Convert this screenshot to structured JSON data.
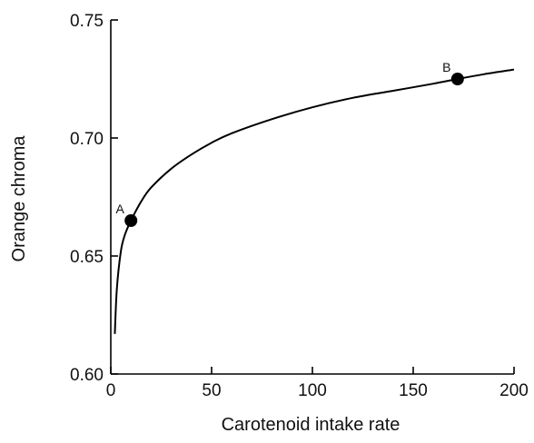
{
  "chart_data": {
    "type": "line",
    "title": "",
    "xlabel": "Carotenoid intake rate",
    "ylabel": "Orange chroma",
    "xlim": [
      0,
      200
    ],
    "ylim": [
      0.6,
      0.75
    ],
    "grid": false,
    "x_ticks": [
      "0",
      "50",
      "100",
      "150",
      "200"
    ],
    "y_ticks": [
      "0.60",
      "0.65",
      "0.70",
      "0.75"
    ],
    "series": [
      {
        "x": [
          2,
          3,
          5,
          7,
          10,
          15,
          20,
          30,
          40,
          50,
          60,
          80,
          100,
          120,
          140,
          160,
          172,
          185,
          200
        ],
        "y": [
          0.617,
          0.636,
          0.652,
          0.659,
          0.665,
          0.673,
          0.679,
          0.687,
          0.693,
          0.698,
          0.702,
          0.708,
          0.713,
          0.717,
          0.72,
          0.723,
          0.725,
          0.727,
          0.729
        ]
      }
    ],
    "points": [
      {
        "label": "A",
        "x": 10,
        "y": 0.665
      },
      {
        "label": "B",
        "x": 172,
        "y": 0.725
      }
    ],
    "colors": {
      "line": "#000000",
      "marker": "#000000"
    }
  }
}
